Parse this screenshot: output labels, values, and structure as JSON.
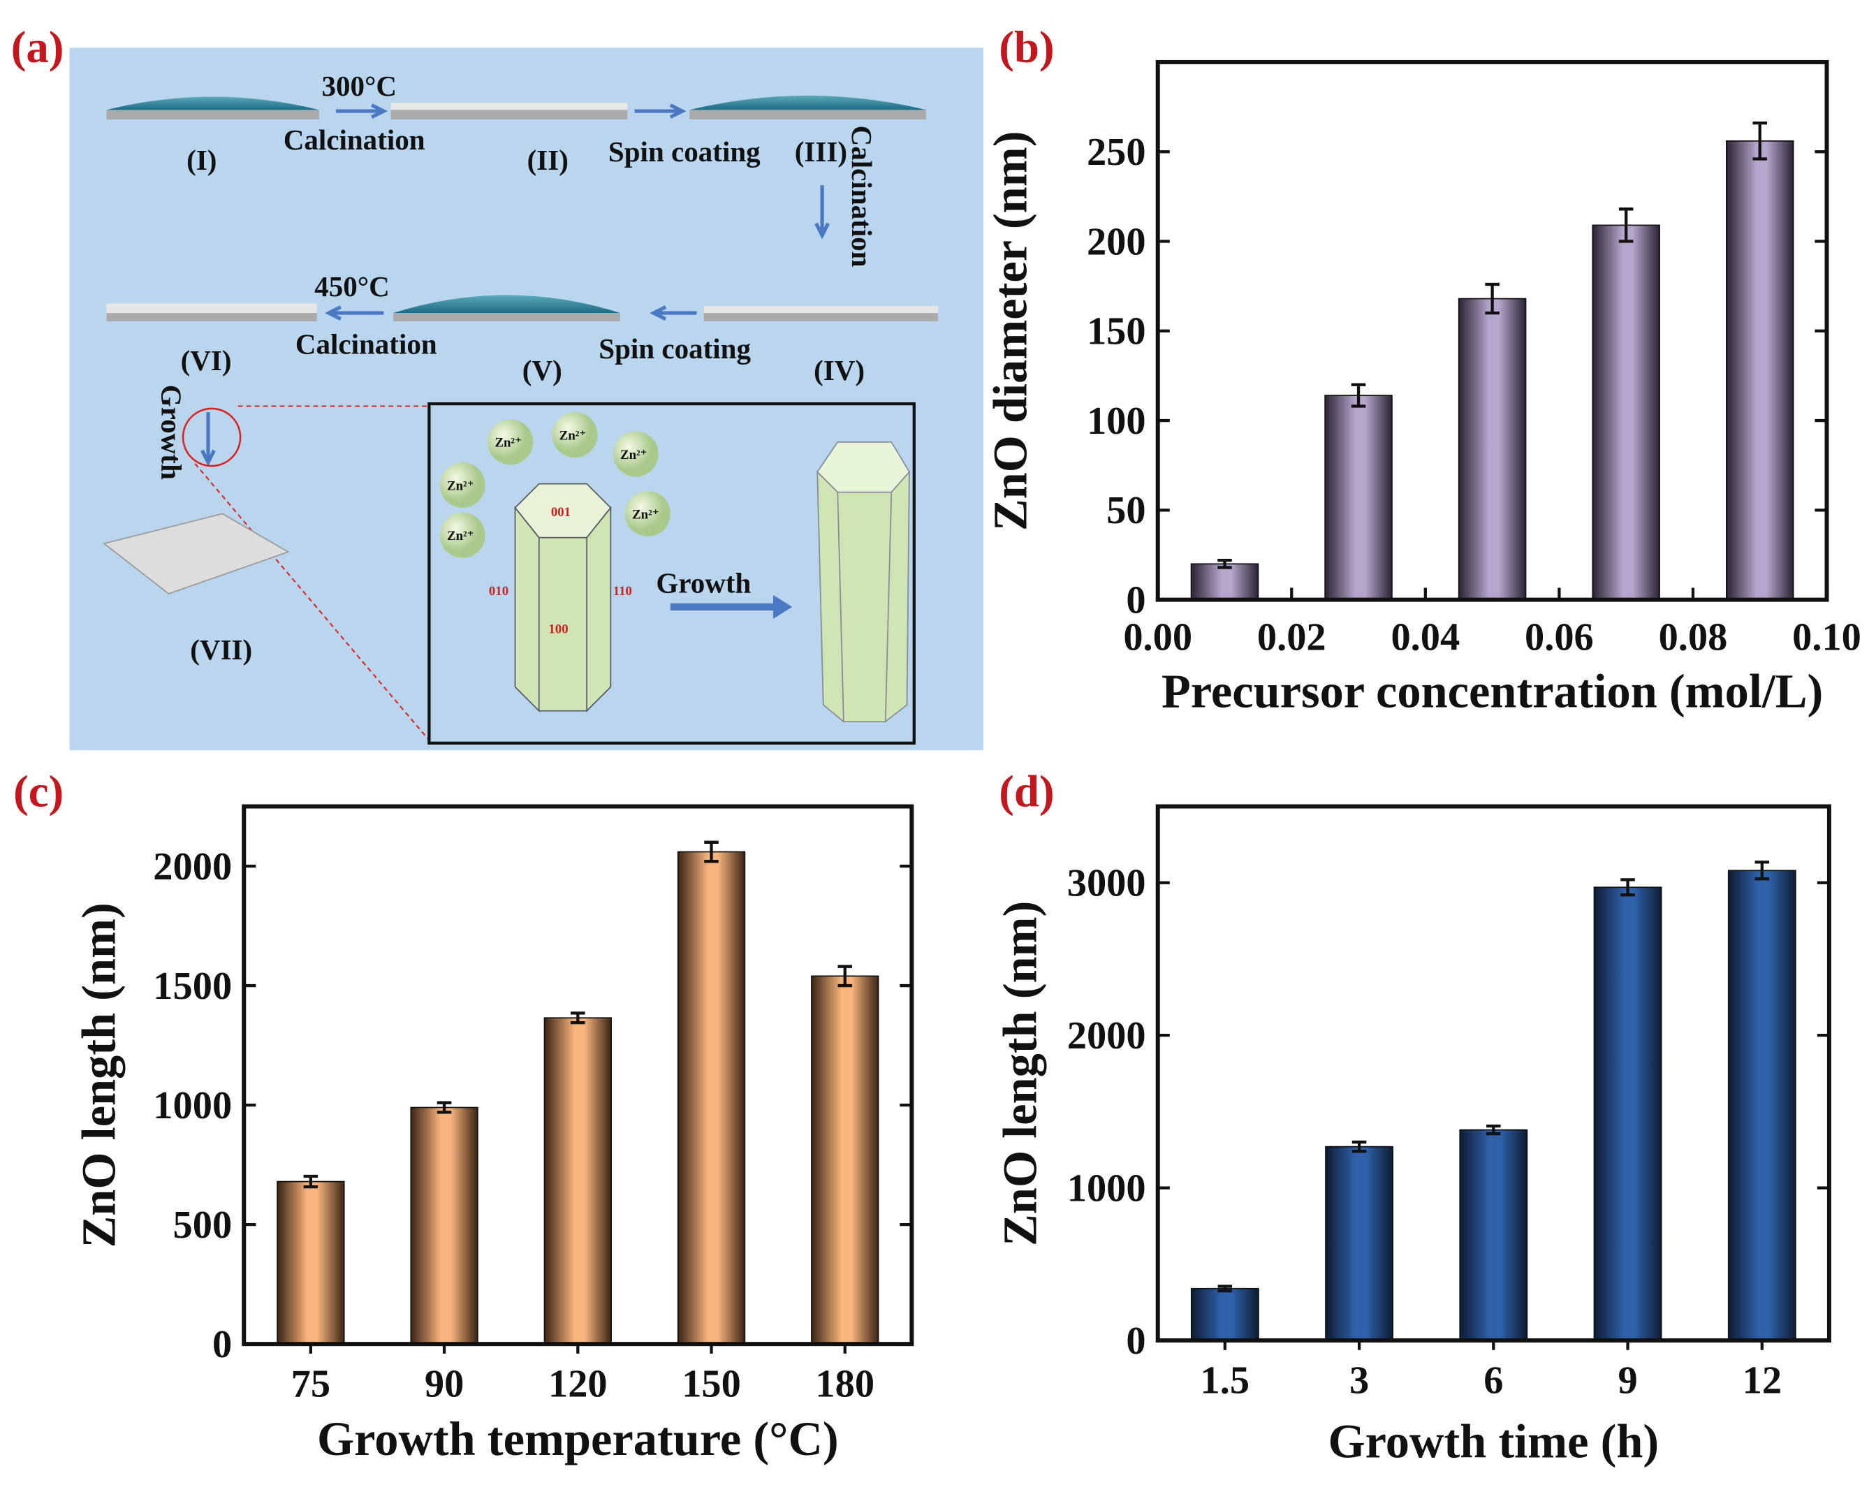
{
  "panel_labels": [
    "(a)",
    "(b)",
    "(c)",
    "(d)"
  ],
  "schematic": {
    "steps": [
      "(I)",
      "(II)",
      "(III)",
      "(IV)",
      "(V)",
      "(VI)",
      "(VII)"
    ],
    "temp1": "300°C",
    "temp2": "450°C",
    "calcination": "Calcination",
    "spin_coating": "Spin coating",
    "growth": "Growth",
    "ion": "Zn²⁺",
    "facets": [
      "001",
      "010",
      "110",
      "100"
    ],
    "colors": {
      "background": "#b9d6ee",
      "arrow": "#4a78c2",
      "crystal": "#cfe6b4"
    }
  },
  "chart_data": [
    {
      "type": "bar",
      "panel": "(b)",
      "xlabel": "Precursor concentration (mol/L)",
      "ylabel": "ZnO diameter (nm)",
      "x": [
        0.01,
        0.03,
        0.05,
        0.07,
        0.09
      ],
      "values": [
        20,
        114,
        168,
        209,
        256
      ],
      "errors": [
        2,
        6,
        8,
        9,
        10
      ],
      "xlim": [
        0,
        0.1
      ],
      "ylim": [
        0,
        300
      ],
      "xticks": [
        "0.00",
        "0.02",
        "0.04",
        "0.06",
        "0.08",
        "0.10"
      ],
      "yticks": [
        "0",
        "50",
        "100",
        "150",
        "200",
        "250"
      ],
      "color": "#b4a6cc"
    },
    {
      "type": "bar",
      "panel": "(c)",
      "xlabel": "Growth temperature  (°C)",
      "ylabel": "ZnO length (nm)",
      "categories": [
        "75",
        "90",
        "120",
        "150",
        "180"
      ],
      "values": [
        680,
        990,
        1365,
        2060,
        1540
      ],
      "errors": [
        22,
        20,
        20,
        40,
        40
      ],
      "ylim": [
        0,
        2250
      ],
      "yticks": [
        "0",
        "500",
        "1000",
        "1500",
        "2000"
      ],
      "color": "#f7b47c"
    },
    {
      "type": "bar",
      "panel": "(d)",
      "xlabel": "Growth time (h)",
      "ylabel": "ZnO length (nm)",
      "categories": [
        "1.5",
        "3",
        "6",
        "9",
        "12"
      ],
      "values": [
        340,
        1270,
        1380,
        2970,
        3080
      ],
      "errors": [
        15,
        30,
        25,
        50,
        55
      ],
      "ylim": [
        0,
        3500
      ],
      "yticks": [
        "0",
        "1000",
        "2000",
        "3000"
      ],
      "color": "#2f62ab"
    }
  ]
}
